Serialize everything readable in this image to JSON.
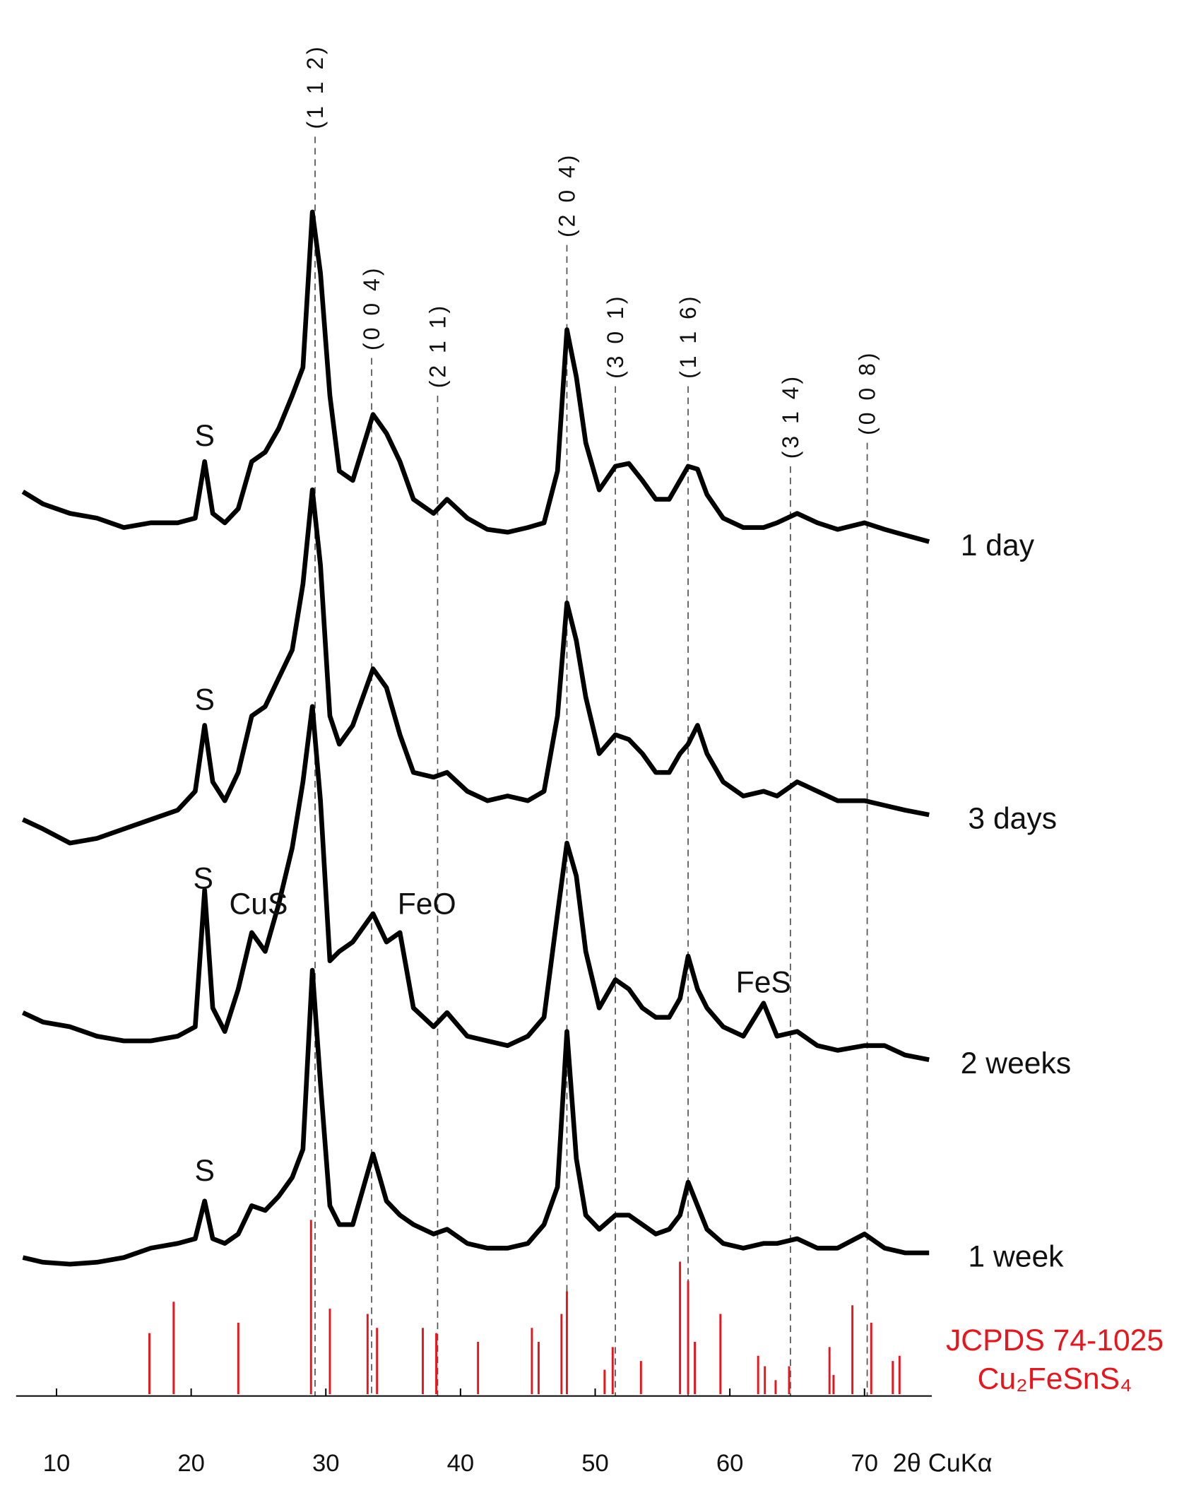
{
  "chart_data": {
    "type": "line",
    "x_label": "2θ CuKα",
    "xlim": [
      7,
      75
    ],
    "xticks": [
      10,
      20,
      30,
      40,
      50,
      60,
      70
    ],
    "ylim": [
      0,
      138
    ],
    "x": [
      7.5,
      9,
      11,
      13,
      15,
      17,
      19,
      20.3,
      21,
      21.6,
      22.5,
      23.5,
      24.5,
      25.5,
      26.5,
      27.5,
      28.3,
      29,
      29.6,
      30.3,
      31,
      32,
      33.5,
      34.5,
      35.5,
      36.5,
      38,
      39,
      40.5,
      42,
      43.5,
      45,
      46.2,
      47.2,
      47.9,
      48.6,
      49.3,
      50.3,
      51.5,
      52.5,
      53.5,
      54.5,
      55.5,
      56.3,
      56.9,
      57.6,
      58.3,
      59.5,
      61,
      62.5,
      63.5,
      65,
      66.5,
      68,
      70,
      71.5,
      73,
      74.8
    ],
    "series": [
      {
        "name": "1 day",
        "color": "#000000",
        "values": [
          85.8,
          84.5,
          83.5,
          83,
          82,
          82.5,
          82.5,
          83,
          89,
          83.5,
          82.5,
          84,
          89,
          90,
          92.5,
          96,
          99,
          115.5,
          109,
          96,
          88,
          87,
          94,
          92,
          89,
          85,
          83.5,
          85,
          83,
          81.8,
          81.5,
          82,
          82.5,
          88,
          103,
          98,
          91,
          86,
          88.5,
          88.8,
          87,
          85,
          85,
          87,
          88.5,
          88.2,
          85.5,
          83,
          82,
          82,
          82.5,
          83.5,
          82.5,
          81.8,
          82.5,
          81.8,
          81.2,
          80.5
        ]
      },
      {
        "name": "3 days",
        "color": "#000000",
        "values": [
          51,
          50,
          48.5,
          49,
          50,
          51,
          52,
          54,
          61,
          55,
          53,
          56,
          62,
          63,
          66,
          69,
          76,
          86,
          78,
          62,
          59,
          61,
          67,
          65,
          60,
          56,
          55.5,
          56,
          54,
          53,
          53.5,
          53,
          54,
          62,
          74,
          70,
          64,
          58,
          60,
          59.5,
          58,
          56,
          56,
          58,
          59,
          61,
          58,
          55,
          53.5,
          54,
          53.5,
          55,
          54,
          53,
          53,
          52.5,
          52,
          51.5
        ]
      },
      {
        "name": "2 weeks",
        "color": "#000000",
        "values": [
          30.5,
          29.5,
          29,
          28,
          27.5,
          27.5,
          28,
          29,
          43.5,
          31,
          28.5,
          33,
          39,
          37,
          42,
          48,
          55,
          63,
          53,
          36,
          37,
          38,
          41,
          38,
          39,
          31,
          29,
          30.5,
          28,
          27.5,
          27,
          28,
          30,
          41,
          48.5,
          45,
          37,
          31,
          34,
          33,
          31,
          30,
          30,
          32,
          36.5,
          33,
          31,
          29,
          28,
          31.5,
          28,
          28.5,
          27,
          26.5,
          27,
          27,
          26,
          25.5
        ]
      },
      {
        "name": "1 week",
        "color": "#000000",
        "values": [
          4.5,
          4,
          3.8,
          4,
          4.5,
          5.5,
          6,
          6.5,
          10.5,
          6.5,
          6,
          7,
          10,
          9.5,
          11,
          13,
          16,
          35,
          23,
          10,
          8,
          8,
          15.5,
          10.5,
          9,
          8,
          7,
          7.5,
          6,
          5.5,
          5.5,
          6,
          8,
          12,
          28.5,
          15,
          9,
          7.5,
          9,
          9,
          8,
          7,
          7.5,
          9,
          12.5,
          10,
          7.5,
          6,
          5.5,
          6,
          6,
          6.5,
          5.5,
          5.5,
          7,
          5.5,
          5,
          5
        ]
      }
    ],
    "reference": {
      "name": "JCPDS 74-1025",
      "formula": "Cu₂FeSnS₄",
      "color": "#e8161c",
      "ylim": [
        0,
        100
      ],
      "x": [
        16.9,
        18.7,
        23.5,
        28.9,
        30.3,
        33.1,
        33.8,
        37.2,
        38.2,
        41.3,
        45.3,
        45.8,
        47.5,
        47.9,
        50.7,
        51.3,
        53.4,
        56.3,
        56.9,
        57.4,
        59.3,
        62.1,
        62.6,
        63.4,
        64.4,
        67.4,
        67.7,
        69.1,
        70.5,
        72.1,
        72.6
      ],
      "values": [
        35,
        53,
        41,
        100,
        49,
        46,
        38,
        38,
        35,
        30,
        38,
        30,
        46,
        59,
        14,
        27,
        19,
        76,
        65,
        30,
        46,
        22,
        16,
        8,
        16,
        27,
        11,
        51,
        41,
        19,
        22
      ]
    },
    "reflections": [
      {
        "label": "(1 1 2)",
        "x": 29.2,
        "y": 123.5
      },
      {
        "label": "(0 0 4)",
        "x": 33.4,
        "y": 100
      },
      {
        "label": "(2 1 1)",
        "x": 38.3,
        "y": 96
      },
      {
        "label": "(2 0 4)",
        "x": 47.9,
        "y": 112
      },
      {
        "label": "(3 0 1)",
        "x": 51.5,
        "y": 97
      },
      {
        "label": "(1 1 6)",
        "x": 56.9,
        "y": 97
      },
      {
        "label": "(3 1 4)",
        "x": 64.5,
        "y": 88.5
      },
      {
        "label": "(0 0 8)",
        "x": 70.2,
        "y": 91
      }
    ],
    "annotations": [
      {
        "text": "S",
        "x": 21,
        "y": 91.5
      },
      {
        "text": "S",
        "x": 21,
        "y": 63.5
      },
      {
        "text": "S",
        "x": 20.9,
        "y": 44.5
      },
      {
        "text": "CuS",
        "x": 25,
        "y": 41.8
      },
      {
        "text": "FeO",
        "x": 37.5,
        "y": 41.8
      },
      {
        "text": "FeS",
        "x": 62.5,
        "y": 33.5
      },
      {
        "text": "S",
        "x": 21,
        "y": 13.5
      }
    ]
  }
}
